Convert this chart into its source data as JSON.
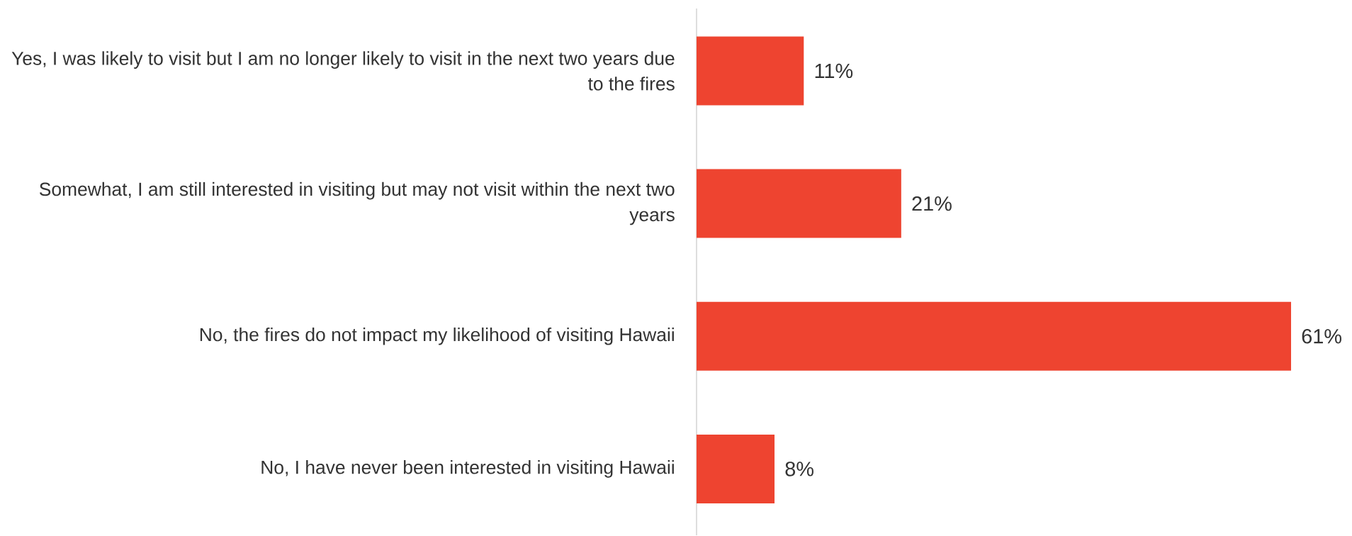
{
  "chart_data": {
    "type": "bar",
    "orientation": "horizontal",
    "tick_labels": "y",
    "categories": [
      "Yes, I was likely to visit but I am no longer likely to visit in the next two years due to the fires",
      "Somewhat, I am still interested in visiting but may not visit within the next two years",
      "No, the fires do not impact my likelihood of visiting Hawaii",
      "No, I have never been interested in visiting Hawaii"
    ],
    "values": [
      11,
      21,
      61,
      8
    ],
    "value_labels": [
      "11%",
      "21%",
      "61%",
      "8%"
    ],
    "color": "#ee4430"
  }
}
